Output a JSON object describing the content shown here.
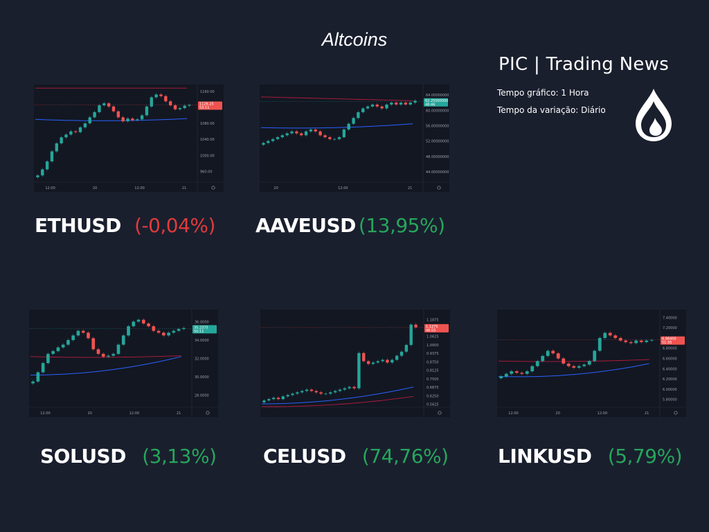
{
  "title": "Altcoins",
  "brand": "PIC | Trading News",
  "info": {
    "timeframe": "Tempo gráfico: 1 Hora",
    "variation": "Tempo da variação: Diário"
  },
  "colors": {
    "up": "#26a69a",
    "down": "#ef5350",
    "ma_blue": "#2962ff",
    "ma_red": "#b71c3c",
    "positive_text": "#26a65b",
    "negative_text": "#e03b3b"
  },
  "icons": {
    "logo": "flame-drop-icon"
  },
  "chart_data": [
    {
      "type": "candlestick",
      "symbol": "ETHUSD",
      "change": "(-0,04%)",
      "direction": "negative",
      "x_ticks": [
        "12:00",
        "20",
        "12:00",
        "21"
      ],
      "y_ticks": [
        "1160.00",
        "1080.00",
        "1040.00",
        "1000.00",
        "960.00"
      ],
      "ylim": [
        940,
        1170
      ],
      "price_tag": {
        "value": "1126.25",
        "sub": "53:11",
        "level": 1126,
        "color": "down"
      },
      "closes": [
        950,
        965,
        985,
        1010,
        1030,
        1045,
        1052,
        1060,
        1058,
        1070,
        1080,
        1095,
        1108,
        1125,
        1130,
        1122,
        1110,
        1095,
        1085,
        1092,
        1088,
        1090,
        1100,
        1122,
        1145,
        1152,
        1148,
        1135,
        1125,
        1115,
        1118,
        1124,
        1126
      ],
      "ma_blue": {
        "start": 1090,
        "end": 1092,
        "dip": 1082
      },
      "ma_red": {
        "start": 1168,
        "end": 1168
      }
    },
    {
      "type": "candlestick",
      "symbol": "AAVEUSD",
      "change": "(13,95%)",
      "direction": "positive",
      "x_ticks": [
        "20",
        "12:00",
        "21"
      ],
      "y_ticks": [
        "64.00000000",
        "60.00000000",
        "56.00000000",
        "52.00000000",
        "48.00000000",
        "44.00000000"
      ],
      "ylim": [
        42,
        66
      ],
      "price_tag": {
        "value": "62.25000000",
        "sub": "48:46",
        "level": 62.25,
        "color": "up"
      },
      "closes": [
        51.5,
        52,
        52.5,
        53,
        53.5,
        54,
        54.5,
        54,
        53.5,
        54.5,
        55,
        54.5,
        53.5,
        53,
        52.5,
        52.5,
        53,
        55,
        56.5,
        58,
        59.5,
        60.5,
        61,
        61.5,
        61,
        60.5,
        61.5,
        62,
        61.5,
        62,
        61.5,
        62,
        62.5
      ],
      "ma_blue": {
        "start": 55.5,
        "end": 56.5,
        "dip": 55
      },
      "ma_red": {
        "start": 63.5,
        "end": 62.5
      }
    },
    {
      "type": "candlestick",
      "symbol": "SOLUSD",
      "change": "(3,13%)",
      "direction": "positive",
      "x_ticks": [
        "12:00",
        "20",
        "12:00",
        "21"
      ],
      "y_ticks": [
        "36.0000",
        "34.0000",
        "32.0000",
        "30.0000",
        "28.0000"
      ],
      "ylim": [
        27,
        37
      ],
      "price_tag": {
        "value": "35.2375",
        "sub": "50:11",
        "level": 35.24,
        "color": "up"
      },
      "closes": [
        29.5,
        30.5,
        31.5,
        32.5,
        32.8,
        33.2,
        33.5,
        34,
        34.5,
        35,
        34.8,
        34.2,
        33,
        32.5,
        32.2,
        32.3,
        32.5,
        33.5,
        34.5,
        35.5,
        36,
        36.2,
        35.8,
        35.5,
        35,
        34.8,
        34.5,
        34.8,
        35,
        35.2,
        35.3
      ],
      "ma_blue": {
        "start": 30.2,
        "end": 32.2,
        "dip": 30.2
      },
      "ma_red": {
        "start": 32.2,
        "end": 32.3,
        "dip": 32
      }
    },
    {
      "type": "candlestick",
      "symbol": "CELUSD",
      "change": "(74,76%)",
      "direction": "positive",
      "x_ticks": [],
      "y_ticks": [
        "1.1875",
        "1.0625",
        "1.0000",
        "0.9375",
        "0.8750",
        "0.8125",
        "0.7500",
        "0.6875",
        "0.6250",
        "0.5625"
      ],
      "ylim": [
        0.56,
        1.24
      ],
      "price_tag": {
        "value": "1.1275",
        "sub": "46:55",
        "level": 1.128,
        "color": "down"
      },
      "closes": [
        0.59,
        0.6,
        0.61,
        0.6,
        0.62,
        0.63,
        0.64,
        0.65,
        0.66,
        0.67,
        0.66,
        0.65,
        0.64,
        0.64,
        0.65,
        0.66,
        0.67,
        0.68,
        0.69,
        0.68,
        0.94,
        0.88,
        0.86,
        0.87,
        0.88,
        0.89,
        0.87,
        0.89,
        0.92,
        0.95,
        1.0,
        1.15,
        1.13
      ],
      "ma_blue": {
        "start": 0.565,
        "end": 0.69,
        "dip": 0.565
      },
      "ma_red": {
        "start": 0.545,
        "end": 0.62,
        "dip": 0.54
      }
    },
    {
      "type": "candlestick",
      "symbol": "LINKUSD",
      "change": "(5,79%)",
      "direction": "positive",
      "x_ticks": [
        "12:00",
        "20",
        "12:00",
        "21"
      ],
      "y_ticks": [
        "7.40000",
        "7.20000",
        "7.00000",
        "6.80000",
        "6.60000",
        "6.40000",
        "6.20000",
        "6.00000",
        "5.80000"
      ],
      "ylim": [
        5.7,
        7.5
      ],
      "price_tag": {
        "value": "6.96400",
        "sub": "51:35",
        "level": 6.964,
        "color": "down"
      },
      "closes": [
        6.25,
        6.3,
        6.35,
        6.32,
        6.3,
        6.35,
        6.45,
        6.55,
        6.65,
        6.75,
        6.7,
        6.6,
        6.5,
        6.45,
        6.42,
        6.45,
        6.48,
        6.55,
        6.75,
        7.0,
        7.1,
        7.05,
        7.0,
        6.95,
        6.92,
        6.9,
        6.95,
        6.92,
        6.95,
        6.96
      ],
      "ma_blue": {
        "start": 6.25,
        "end": 6.5,
        "dip": 6.2
      },
      "ma_red": {
        "start": 6.55,
        "end": 6.58,
        "dip": 6.52
      }
    }
  ]
}
